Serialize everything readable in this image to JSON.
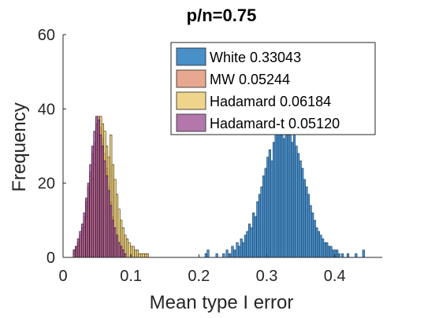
{
  "chart_data": {
    "type": "histogram",
    "title": "p/n=0.75",
    "xlabel": "Mean type I error",
    "ylabel": "Frequency",
    "xlim": [
      0,
      0.47
    ],
    "ylim": [
      0,
      60
    ],
    "xticks": [
      0,
      0.1,
      0.2,
      0.3,
      0.4
    ],
    "xtick_labels": [
      "0",
      "0.1",
      "0.2",
      "0.3",
      "0.4"
    ],
    "yticks": [
      0,
      20,
      40,
      60
    ],
    "ytick_labels": [
      "0",
      "20",
      "40",
      "60"
    ],
    "legend_position": "top-right",
    "series": [
      {
        "name": "White 0.33043",
        "color": "#4a90c8",
        "edge": "#1b3a5c",
        "bins": [
          [
            0.209,
            1
          ],
          [
            0.212,
            2
          ],
          [
            0.225,
            1
          ],
          [
            0.235,
            1
          ],
          [
            0.24,
            2
          ],
          [
            0.244,
            1
          ],
          [
            0.248,
            3
          ],
          [
            0.251,
            2
          ],
          [
            0.255,
            4
          ],
          [
            0.258,
            3
          ],
          [
            0.261,
            5
          ],
          [
            0.264,
            4
          ],
          [
            0.267,
            6
          ],
          [
            0.27,
            7
          ],
          [
            0.273,
            9
          ],
          [
            0.276,
            8
          ],
          [
            0.279,
            12
          ],
          [
            0.282,
            11
          ],
          [
            0.285,
            15
          ],
          [
            0.288,
            17
          ],
          [
            0.291,
            19
          ],
          [
            0.294,
            22
          ],
          [
            0.297,
            24
          ],
          [
            0.3,
            27
          ],
          [
            0.303,
            29
          ],
          [
            0.306,
            26
          ],
          [
            0.309,
            31
          ],
          [
            0.312,
            34
          ],
          [
            0.315,
            36
          ],
          [
            0.318,
            38
          ],
          [
            0.321,
            33
          ],
          [
            0.324,
            32
          ],
          [
            0.327,
            36
          ],
          [
            0.33,
            38
          ],
          [
            0.333,
            35
          ],
          [
            0.336,
            31
          ],
          [
            0.339,
            34
          ],
          [
            0.342,
            30
          ],
          [
            0.345,
            28
          ],
          [
            0.348,
            26
          ],
          [
            0.351,
            24
          ],
          [
            0.354,
            21
          ],
          [
            0.357,
            19
          ],
          [
            0.36,
            17
          ],
          [
            0.363,
            14
          ],
          [
            0.366,
            12
          ],
          [
            0.369,
            10
          ],
          [
            0.372,
            8
          ],
          [
            0.375,
            7
          ],
          [
            0.378,
            6
          ],
          [
            0.381,
            5
          ],
          [
            0.384,
            4
          ],
          [
            0.387,
            4
          ],
          [
            0.39,
            3
          ],
          [
            0.393,
            3
          ],
          [
            0.396,
            2
          ],
          [
            0.399,
            2
          ],
          [
            0.402,
            2
          ],
          [
            0.405,
            1
          ],
          [
            0.41,
            1
          ],
          [
            0.418,
            1
          ],
          [
            0.43,
            1
          ],
          [
            0.441,
            2
          ]
        ]
      },
      {
        "name": "MW 0.05244",
        "color": "#e0896a",
        "edge": "#5a2a1a",
        "bins": [
          [
            0.015,
            2
          ],
          [
            0.018,
            3
          ],
          [
            0.021,
            4
          ],
          [
            0.024,
            6
          ],
          [
            0.027,
            8
          ],
          [
            0.03,
            11
          ],
          [
            0.033,
            15
          ],
          [
            0.036,
            19
          ],
          [
            0.039,
            23
          ],
          [
            0.042,
            28
          ],
          [
            0.045,
            31
          ],
          [
            0.048,
            36
          ],
          [
            0.051,
            38
          ],
          [
            0.054,
            35
          ],
          [
            0.057,
            32
          ],
          [
            0.06,
            28
          ],
          [
            0.063,
            24
          ],
          [
            0.066,
            19
          ],
          [
            0.069,
            15
          ],
          [
            0.072,
            11
          ],
          [
            0.075,
            8
          ],
          [
            0.078,
            6
          ],
          [
            0.081,
            4
          ],
          [
            0.084,
            3
          ],
          [
            0.087,
            2
          ],
          [
            0.09,
            1
          ]
        ]
      },
      {
        "name": "Hadamard 0.06184",
        "color": "#e8c35a",
        "edge": "#3a2e0a",
        "bins": [
          [
            0.015,
            1
          ],
          [
            0.018,
            2
          ],
          [
            0.021,
            3
          ],
          [
            0.024,
            4
          ],
          [
            0.027,
            6
          ],
          [
            0.03,
            8
          ],
          [
            0.033,
            11
          ],
          [
            0.036,
            14
          ],
          [
            0.039,
            17
          ],
          [
            0.042,
            21
          ],
          [
            0.045,
            25
          ],
          [
            0.048,
            29
          ],
          [
            0.051,
            33
          ],
          [
            0.054,
            38
          ],
          [
            0.057,
            36
          ],
          [
            0.06,
            34
          ],
          [
            0.063,
            30
          ],
          [
            0.066,
            27
          ],
          [
            0.069,
            33
          ],
          [
            0.072,
            25
          ],
          [
            0.075,
            21
          ],
          [
            0.078,
            17
          ],
          [
            0.081,
            13
          ],
          [
            0.084,
            10
          ],
          [
            0.087,
            8
          ],
          [
            0.09,
            6
          ],
          [
            0.093,
            5
          ],
          [
            0.096,
            4
          ],
          [
            0.099,
            3
          ],
          [
            0.102,
            3
          ],
          [
            0.105,
            2
          ],
          [
            0.108,
            2
          ],
          [
            0.111,
            1
          ],
          [
            0.114,
            1
          ],
          [
            0.117,
            1
          ],
          [
            0.12,
            1
          ],
          [
            0.123,
            1
          ]
        ]
      },
      {
        "name": "Hadamard-t 0.05120",
        "color": "#9a4a90",
        "edge": "#2a0a2a",
        "bins": [
          [
            0.015,
            2
          ],
          [
            0.018,
            3
          ],
          [
            0.021,
            5
          ],
          [
            0.024,
            7
          ],
          [
            0.027,
            9
          ],
          [
            0.03,
            12
          ],
          [
            0.033,
            16
          ],
          [
            0.036,
            20
          ],
          [
            0.039,
            25
          ],
          [
            0.042,
            30
          ],
          [
            0.045,
            34
          ],
          [
            0.048,
            38
          ],
          [
            0.051,
            37
          ],
          [
            0.054,
            33
          ],
          [
            0.057,
            30
          ],
          [
            0.06,
            26
          ],
          [
            0.063,
            22
          ],
          [
            0.066,
            18
          ],
          [
            0.069,
            14
          ],
          [
            0.072,
            10
          ],
          [
            0.075,
            8
          ],
          [
            0.078,
            6
          ],
          [
            0.081,
            4
          ],
          [
            0.084,
            3
          ],
          [
            0.087,
            2
          ],
          [
            0.09,
            1
          ]
        ]
      }
    ]
  }
}
